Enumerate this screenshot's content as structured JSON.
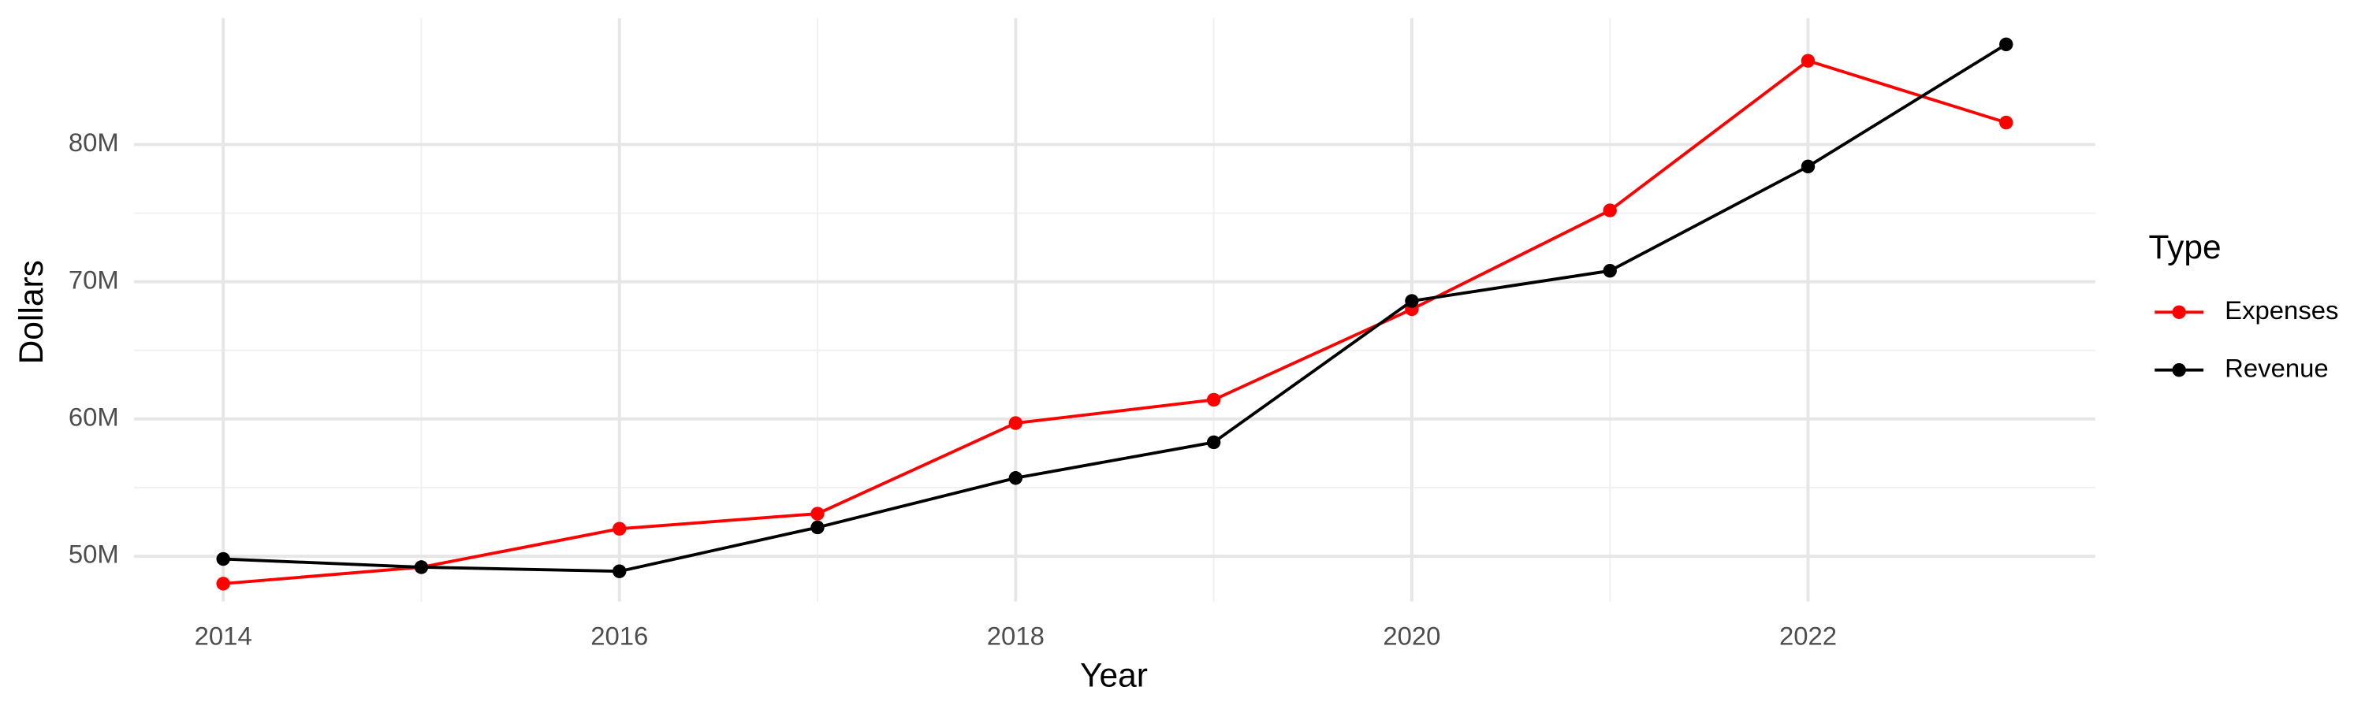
{
  "chart_data": {
    "type": "line",
    "x_label": "Year",
    "y_label": "Dollars",
    "legend_title": "Type",
    "x": [
      2014,
      2015,
      2016,
      2017,
      2018,
      2019,
      2020,
      2021,
      2022,
      2023
    ],
    "series": [
      {
        "name": "Expenses",
        "color": "#ff0000",
        "values": [
          48000000,
          49200000,
          52000000,
          53100000,
          59700000,
          61400000,
          68000000,
          75200000,
          86100000,
          81600000
        ]
      },
      {
        "name": "Revenue",
        "color": "#000000",
        "values": [
          49800000,
          49200000,
          48900000,
          52100000,
          55700000,
          58300000,
          68600000,
          70800000,
          78400000,
          87300000
        ]
      }
    ],
    "xlim": [
      2013.55,
      2023.45
    ],
    "xticks": [
      2014,
      2016,
      2018,
      2020,
      2022
    ],
    "ylim": [
      46700000,
      89200000
    ],
    "yticks": [
      {
        "value": 50000000,
        "label": "50M"
      },
      {
        "value": 60000000,
        "label": "60M"
      },
      {
        "value": 70000000,
        "label": "70M"
      },
      {
        "value": 80000000,
        "label": "80M"
      }
    ],
    "grid": true,
    "legend_position": "right"
  }
}
